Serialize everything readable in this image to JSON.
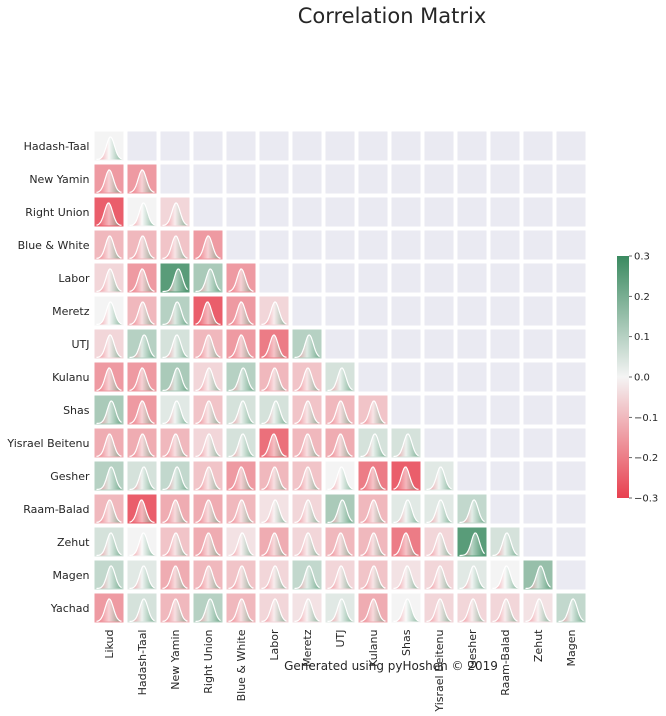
{
  "chart_data": {
    "type": "heatmap",
    "title": "Correlation Matrix",
    "footer": "Generated using pyHoshen © 2019",
    "rows": [
      "Hadash-Taal",
      "New Yamin",
      "Right Union",
      "Blue & White",
      "Labor",
      "Meretz",
      "UTJ",
      "Kulanu",
      "Shas",
      "Yisrael Beitenu",
      "Gesher",
      "Raam-Balad",
      "Zehut",
      "Magen",
      "Yachad"
    ],
    "columns": [
      "Likud",
      "Hadash-Taal",
      "New Yamin",
      "Right Union",
      "Blue & White",
      "Labor",
      "Meretz",
      "UTJ",
      "Kulanu",
      "Shas",
      "Yisrael Beitenu",
      "Gesher",
      "Raam-Balad",
      "Zehut",
      "Magen"
    ],
    "values": [
      [
        0.0
      ],
      [
        -0.15,
        -0.15
      ],
      [
        -0.25,
        0.0,
        -0.05
      ],
      [
        -0.1,
        -0.1,
        -0.08,
        -0.15
      ],
      [
        -0.05,
        -0.15,
        0.25,
        0.12,
        -0.15
      ],
      [
        0.0,
        -0.1,
        0.1,
        -0.25,
        -0.15,
        -0.05
      ],
      [
        -0.05,
        0.1,
        0.05,
        -0.1,
        -0.15,
        -0.2,
        0.1
      ],
      [
        -0.15,
        -0.15,
        0.12,
        -0.05,
        0.1,
        -0.1,
        -0.08,
        0.05
      ],
      [
        0.12,
        -0.15,
        0.03,
        -0.08,
        0.05,
        0.05,
        -0.08,
        -0.1,
        -0.08
      ],
      [
        -0.12,
        -0.12,
        -0.1,
        -0.05,
        0.05,
        -0.22,
        -0.1,
        -0.12,
        0.05,
        0.05
      ],
      [
        0.1,
        0.05,
        0.08,
        -0.08,
        -0.15,
        -0.1,
        -0.08,
        0.0,
        -0.2,
        -0.25,
        0.03
      ],
      [
        -0.1,
        -0.25,
        -0.12,
        -0.12,
        -0.1,
        -0.03,
        -0.05,
        0.12,
        -0.1,
        0.03,
        0.03,
        0.08
      ],
      [
        0.05,
        0.0,
        -0.08,
        -0.12,
        -0.03,
        -0.12,
        -0.05,
        -0.1,
        -0.1,
        -0.2,
        -0.05,
        0.25,
        0.05
      ],
      [
        0.08,
        0.03,
        -0.12,
        -0.1,
        -0.08,
        -0.05,
        0.08,
        -0.05,
        -0.08,
        -0.03,
        -0.05,
        0.03,
        0.0,
        0.15
      ],
      [
        -0.15,
        0.05,
        -0.1,
        0.1,
        -0.1,
        -0.05,
        -0.03,
        0.03,
        -0.12,
        0.0,
        -0.05,
        -0.05,
        -0.05,
        -0.03,
        0.08
      ]
    ],
    "colorbar": {
      "min": -0.3,
      "max": 0.3,
      "ticks": [
        "0.3",
        "0.2",
        "0.1",
        "0.0",
        "−0.1",
        "−0.2",
        "−0.3"
      ]
    },
    "colors": {
      "negative": "#e8404f",
      "positive": "#3a8a60",
      "neutral": "#f4f4f4",
      "empty": "#eaeaf2"
    }
  }
}
